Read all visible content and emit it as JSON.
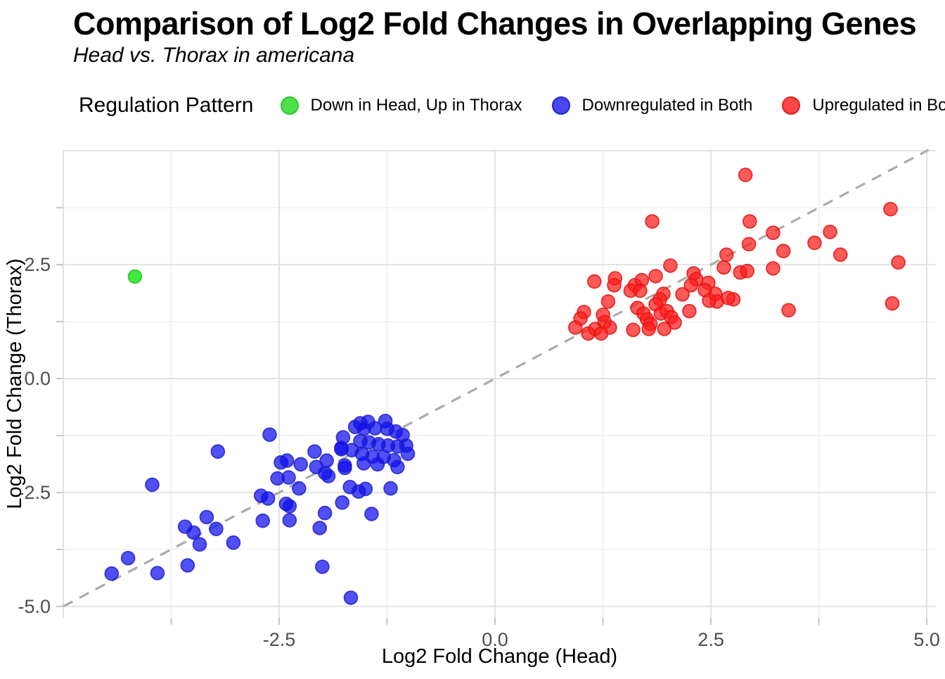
{
  "header": {
    "title": "Comparison of Log2 Fold Changes in Overlapping Genes",
    "subtitle": "Head vs. Thorax in americana"
  },
  "legend": {
    "title": "Regulation Pattern",
    "items": [
      {
        "label": "Down in Head, Up in Thorax",
        "swatch": "#4ce24c",
        "border": "#2ec82e"
      },
      {
        "label": "Downregulated in Both",
        "swatch": "#4848ef",
        "border": "#2323cf"
      },
      {
        "label": "Upregulated in Both",
        "swatch": "#fd4646",
        "border": "#e21f1f"
      }
    ]
  },
  "chart_data": {
    "type": "scatter",
    "title": "Comparison of Log2 Fold Changes in Overlapping Genes",
    "subtitle": "Head vs. Thorax in americana",
    "xlabel": "Log2 Fold Change (Head)",
    "ylabel": "Log2 Fold Change (Thorax)",
    "xlim": [
      -5.0,
      5.105
    ],
    "ylim": [
      -5.25,
      5.02
    ],
    "grid": true,
    "legend_position": "top",
    "x_ticks": [
      {
        "v": -2.5,
        "label": "-2.5"
      },
      {
        "v": 0,
        "label": "0.0"
      },
      {
        "v": 2.5,
        "label": "2.5"
      },
      {
        "v": 5,
        "label": "5.0"
      }
    ],
    "y_ticks": [
      {
        "v": 2.5,
        "label": "2.5"
      },
      {
        "v": 0,
        "label": "0.0"
      },
      {
        "v": -2.5,
        "label": "-2.5"
      },
      {
        "v": -5,
        "label": "-5.0"
      }
    ],
    "x_grid_major": [
      -5,
      -2.5,
      0,
      2.5,
      5
    ],
    "y_grid_major": [
      5,
      2.5,
      0,
      -2.5,
      -5
    ],
    "x_grid_minor": [
      -3.75,
      -1.25,
      1.25,
      3.75
    ],
    "y_grid_minor": [
      3.75,
      1.25,
      -1.25,
      -3.75
    ],
    "x_tick_marks": [
      -3.75,
      -2.5,
      -1.25,
      0,
      1.25,
      2.5,
      3.75,
      5
    ],
    "y_tick_marks": [
      3.75,
      2.5,
      1.25,
      0,
      -1.25,
      -2.5,
      -3.75,
      -5
    ],
    "identity_line": {
      "type": "y=x",
      "from": -5.0,
      "to": 5.02,
      "color": "#ababab",
      "style": "dashed"
    },
    "series": [
      {
        "name": "Down in Head, Up in Thorax",
        "fill": "#00e000",
        "stroke": "#25c425",
        "fill_opacity": 0.75,
        "points": [
          [
            -4.17,
            2.24
          ]
        ]
      },
      {
        "name": "Downregulated in Both",
        "fill": "#0d0dee",
        "stroke": "#2222cc",
        "fill_opacity": 0.72,
        "points": [
          [
            -2.61,
            -1.23
          ],
          [
            -3.21,
            -1.6
          ],
          [
            -3.97,
            -2.33
          ],
          [
            -2.48,
            -1.84
          ],
          [
            -2.52,
            -2.19
          ],
          [
            -2.71,
            -2.57
          ],
          [
            -2.63,
            -2.63
          ],
          [
            -2.42,
            -2.75
          ],
          [
            -3.34,
            -3.04
          ],
          [
            -3.59,
            -3.25
          ],
          [
            -3.49,
            -3.38
          ],
          [
            -3.23,
            -3.3
          ],
          [
            -3.42,
            -3.64
          ],
          [
            -3.03,
            -3.6
          ],
          [
            -2.69,
            -3.12
          ],
          [
            -4.25,
            -3.94
          ],
          [
            -4.44,
            -4.28
          ],
          [
            -3.91,
            -4.27
          ],
          [
            -3.56,
            -4.1
          ],
          [
            -2.09,
            -1.6
          ],
          [
            -2.41,
            -1.8
          ],
          [
            -2.25,
            -1.88
          ],
          [
            -2.07,
            -1.94
          ],
          [
            -1.95,
            -1.8
          ],
          [
            -1.78,
            -1.55
          ],
          [
            -2.39,
            -2.17
          ],
          [
            -2.27,
            -2.41
          ],
          [
            -1.97,
            -2.07
          ],
          [
            -1.93,
            -2.14
          ],
          [
            -1.74,
            -1.96
          ],
          [
            -1.68,
            -2.38
          ],
          [
            -1.58,
            -2.48
          ],
          [
            -1.5,
            -2.42
          ],
          [
            -1.21,
            -2.41
          ],
          [
            -1.77,
            -2.72
          ],
          [
            -1.97,
            -2.95
          ],
          [
            -2.03,
            -3.28
          ],
          [
            -1.43,
            -2.97
          ],
          [
            -2.38,
            -2.8
          ],
          [
            -2.38,
            -3.11
          ],
          [
            -2.0,
            -4.13
          ],
          [
            -1.67,
            -4.81
          ],
          [
            -1.56,
            -0.98
          ],
          [
            -1.47,
            -0.95
          ],
          [
            -1.27,
            -0.93
          ],
          [
            -1.62,
            -1.06
          ],
          [
            -1.52,
            -1.1
          ],
          [
            -1.39,
            -1.09
          ],
          [
            -1.25,
            -1.1
          ],
          [
            -1.15,
            -1.16
          ],
          [
            -1.07,
            -1.24
          ],
          [
            -1.76,
            -1.29
          ],
          [
            -1.56,
            -1.37
          ],
          [
            -1.46,
            -1.4
          ],
          [
            -1.35,
            -1.44
          ],
          [
            -1.24,
            -1.47
          ],
          [
            -1.13,
            -1.49
          ],
          [
            -1.03,
            -1.47
          ],
          [
            -1.78,
            -1.52
          ],
          [
            -1.66,
            -1.57
          ],
          [
            -1.54,
            -1.65
          ],
          [
            -1.42,
            -1.71
          ],
          [
            -1.29,
            -1.72
          ],
          [
            -1.17,
            -1.79
          ],
          [
            -1.74,
            -1.91
          ],
          [
            -1.52,
            -1.86
          ],
          [
            -1.36,
            -1.88
          ],
          [
            -1.13,
            -1.94
          ],
          [
            -1.01,
            -1.65
          ]
        ]
      },
      {
        "name": "Upregulated in Both",
        "fill": "#ff1a1a",
        "stroke": "#e01414",
        "fill_opacity": 0.72,
        "points": [
          [
            1.15,
            2.13
          ],
          [
            1.39,
            2.2
          ],
          [
            1.38,
            2.05
          ],
          [
            1.62,
            2.05
          ],
          [
            1.7,
            2.16
          ],
          [
            1.86,
            2.25
          ],
          [
            2.03,
            2.48
          ],
          [
            2.3,
            2.31
          ],
          [
            2.33,
            2.18
          ],
          [
            2.65,
            2.44
          ],
          [
            2.84,
            2.33
          ],
          [
            2.47,
            2.1
          ],
          [
            2.27,
            2.05
          ],
          [
            1.57,
            1.93
          ],
          [
            1.68,
            1.93
          ],
          [
            1.95,
            1.86
          ],
          [
            2.17,
            1.85
          ],
          [
            2.55,
            1.86
          ],
          [
            2.57,
            1.69
          ],
          [
            2.76,
            1.74
          ],
          [
            1.31,
            1.69
          ],
          [
            1.91,
            1.74
          ],
          [
            1.65,
            1.55
          ],
          [
            1.03,
            1.46
          ],
          [
            0.99,
            1.32
          ],
          [
            1.25,
            1.4
          ],
          [
            1.27,
            1.24
          ],
          [
            1.33,
            1.12
          ],
          [
            1.16,
            1.09
          ],
          [
            0.93,
            1.12
          ],
          [
            1.08,
            0.99
          ],
          [
            1.23,
            0.99
          ],
          [
            1.86,
            1.63
          ],
          [
            1.72,
            1.43
          ],
          [
            1.76,
            1.3
          ],
          [
            1.8,
            1.2
          ],
          [
            1.92,
            1.43
          ],
          [
            1.99,
            1.48
          ],
          [
            2.04,
            1.35
          ],
          [
            2.08,
            1.23
          ],
          [
            1.96,
            1.09
          ],
          [
            1.6,
            1.07
          ],
          [
            1.78,
            1.09
          ],
          [
            2.25,
            1.48
          ],
          [
            2.43,
            1.94
          ],
          [
            2.48,
            1.71
          ],
          [
            2.7,
            1.77
          ],
          [
            2.9,
            4.47
          ],
          [
            1.82,
            3.45
          ],
          [
            2.95,
            3.45
          ],
          [
            3.22,
            3.2
          ],
          [
            2.94,
            2.95
          ],
          [
            3.34,
            2.8
          ],
          [
            3.7,
            2.98
          ],
          [
            3.88,
            3.22
          ],
          [
            4.0,
            2.72
          ],
          [
            4.58,
            3.72
          ],
          [
            4.67,
            2.55
          ],
          [
            2.68,
            2.72
          ],
          [
            2.92,
            2.36
          ],
          [
            3.22,
            2.42
          ],
          [
            3.4,
            1.5
          ],
          [
            4.6,
            1.65
          ]
        ]
      }
    ]
  },
  "style_colors": {
    "grid_major": "#e2e2e2",
    "grid_minor": "#f0f0f0",
    "tick_mark": "#c6c6c6",
    "tick_label": "#4d4d4d",
    "axis_title": "#000000"
  }
}
